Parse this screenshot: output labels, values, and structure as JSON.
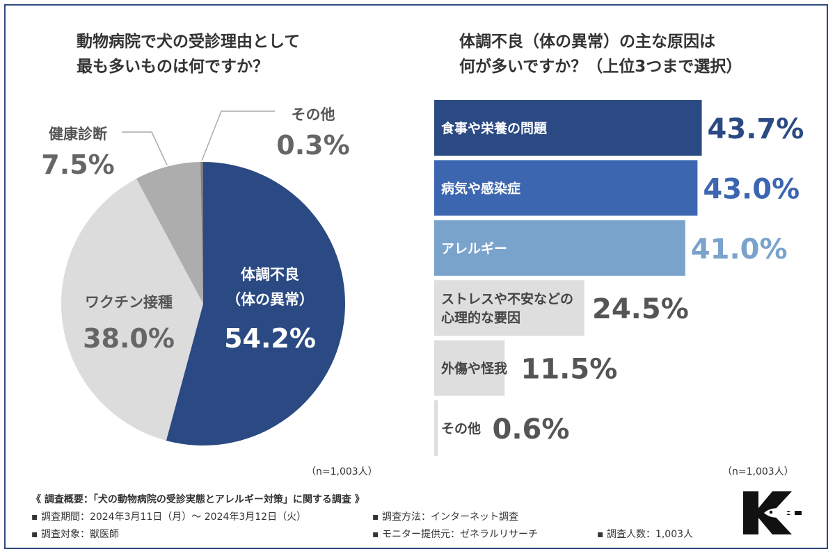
{
  "left_title_lines": [
    "動物病院で犬の受診理由として",
    "最も多いものは何ですか？"
  ],
  "right_title_lines": [
    "体調不良（体の異常）の主な原因は",
    "何が多いですか？（上位3つまで選択）"
  ],
  "n_left": "（n=1,003人）",
  "n_right": "（n=1,003人）",
  "chart_data": [
    {
      "type": "pie",
      "title": "動物病院で犬の受診理由として最も多いものは何ですか？",
      "slices": [
        {
          "label": "体調不良\n（体の異常）",
          "value": 54.2,
          "value_label": "54.2%",
          "color": "#2b4a83"
        },
        {
          "label": "ワクチン接種",
          "value": 38.0,
          "value_label": "38.0%",
          "color": "#dcdcdc"
        },
        {
          "label": "健康診断",
          "value": 7.5,
          "value_label": "7.5%",
          "color": "#adadad"
        },
        {
          "label": "その他",
          "value": 0.3,
          "value_label": "0.3%",
          "color": "#808080"
        }
      ]
    },
    {
      "type": "bar",
      "orientation": "horizontal",
      "title": "体調不良（体の異常）の主な原因は何が多いですか？（上位3つまで選択）",
      "xlim": [
        0,
        50
      ],
      "bars": [
        {
          "label": "食事や栄養の問題",
          "value": 43.7,
          "value_label": "43.7%",
          "color": "#2b4a83",
          "label_color": "#ffffff",
          "value_color": "#2b4a83"
        },
        {
          "label": "病気や感染症",
          "value": 43.0,
          "value_label": "43.0%",
          "color": "#3c66b0",
          "label_color": "#ffffff",
          "value_color": "#3c66b0"
        },
        {
          "label": "アレルギー",
          "value": 41.0,
          "value_label": "41.0%",
          "color": "#7aa3cc",
          "label_color": "#ffffff",
          "value_color": "#7aa3cc"
        },
        {
          "label": "ストレスや不安などの\n心理的な要因",
          "value": 24.5,
          "value_label": "24.5%",
          "color": "#dedede",
          "label_color": "#444444",
          "value_color": "#555555"
        },
        {
          "label": "外傷や怪我",
          "value": 11.5,
          "value_label": "11.5%",
          "color": "#dedede",
          "label_color": "#444444",
          "value_color": "#555555"
        },
        {
          "label": "その他",
          "value": 0.6,
          "value_label": "0.6%",
          "color": "#dedede",
          "label_color": "#444444",
          "value_color": "#555555"
        }
      ]
    }
  ],
  "summary": {
    "heading": "《 調査概要：「犬の動物病院の受診実態とアレルギー対策」に関する調査 》",
    "period": "▪ 調査期間：2024年3月11日（月）～ 2024年3月12日（火）",
    "method": "▪ 調査方法：インターネット調査",
    "target": "▪ 調査対象：獣医師",
    "provider": "▪ モニター提供元：ゼネラルリサーチ",
    "count": "▪ 調査人数：1,003人"
  }
}
